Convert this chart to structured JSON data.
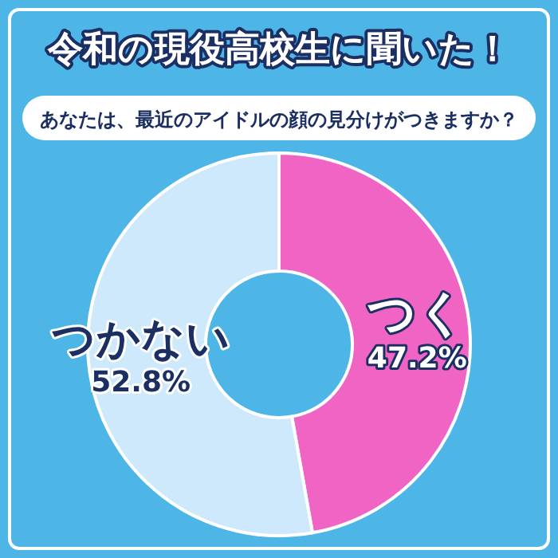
{
  "chart_data": {
    "type": "donut",
    "title": "令和の現役高校生に聞いた！",
    "subtitle": "あなたは、最近のアイドルの顔の見分けがつきますか？",
    "categories": [
      "つく",
      "つかない"
    ],
    "values": [
      47.2,
      52.8
    ],
    "colors": [
      "#f064c3",
      "#cde9fb"
    ],
    "value_labels": [
      "47.2%",
      "52.8%"
    ]
  }
}
